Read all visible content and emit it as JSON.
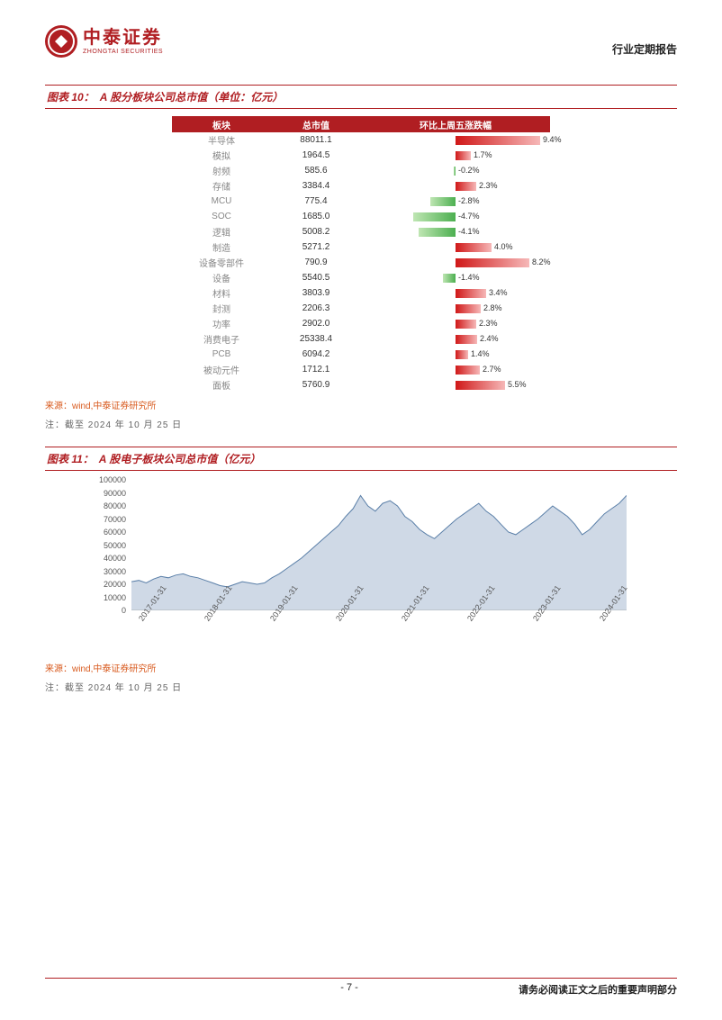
{
  "header": {
    "logo_cn": "中泰证券",
    "logo_en": "ZHONGTAI SECURITIES",
    "right_text": "行业定期报告"
  },
  "fig10": {
    "prefix": "图表 10：",
    "title": "A 股分板块公司总市值（单位：亿元）",
    "columns": [
      "板块",
      "总市值",
      "环比上周五涨跌幅"
    ],
    "bar_scale_pct": 10,
    "pos_color_start": "#d01818",
    "pos_color_end": "#f6b8b8",
    "neg_color_start": "#4caf50",
    "neg_color_end": "#bfe6b3",
    "rows": [
      {
        "name": "半导体",
        "mcap": "88011.1",
        "pct": 9.4
      },
      {
        "name": "模拟",
        "mcap": "1964.5",
        "pct": 1.7
      },
      {
        "name": "射频",
        "mcap": "585.6",
        "pct": -0.2
      },
      {
        "name": "存储",
        "mcap": "3384.4",
        "pct": 2.3
      },
      {
        "name": "MCU",
        "mcap": "775.4",
        "pct": -2.8
      },
      {
        "name": "SOC",
        "mcap": "1685.0",
        "pct": -4.7
      },
      {
        "name": "逻辑",
        "mcap": "5008.2",
        "pct": -4.1
      },
      {
        "name": "制造",
        "mcap": "5271.2",
        "pct": 4.0
      },
      {
        "name": "设备零部件",
        "mcap": "790.9",
        "pct": 8.2
      },
      {
        "name": "设备",
        "mcap": "5540.5",
        "pct": -1.4
      },
      {
        "name": "材料",
        "mcap": "3803.9",
        "pct": 3.4
      },
      {
        "name": "封测",
        "mcap": "2206.3",
        "pct": 2.8
      },
      {
        "name": "功率",
        "mcap": "2902.0",
        "pct": 2.3
      },
      {
        "name": "消费电子",
        "mcap": "25338.4",
        "pct": 2.4
      },
      {
        "name": "PCB",
        "mcap": "6094.2",
        "pct": 1.4
      },
      {
        "name": "被动元件",
        "mcap": "1712.1",
        "pct": 2.7
      },
      {
        "name": "面板",
        "mcap": "5760.9",
        "pct": 5.5
      }
    ],
    "source": "来源：wind,中泰证券研究所",
    "note": "注：截至 2024 年 10 月 25 日"
  },
  "fig11": {
    "prefix": "图表 11：",
    "title": "A 股电子板块公司总市值（亿元）",
    "type": "area",
    "ylim": [
      0,
      100000
    ],
    "ytick_step": 10000,
    "yticks": [
      "0",
      "10000",
      "20000",
      "30000",
      "40000",
      "50000",
      "60000",
      "70000",
      "80000",
      "90000",
      "100000"
    ],
    "xlabels": [
      "2017-01-31",
      "2018-01-31",
      "2019-01-31",
      "2020-01-31",
      "2021-01-31",
      "2022-01-31",
      "2023-01-31",
      "2024-01-31"
    ],
    "line_color": "#5a7fa8",
    "fill_color": "#cfd9e6",
    "background_color": "#ffffff",
    "series": [
      22000,
      23000,
      21000,
      24000,
      26000,
      25000,
      27000,
      28000,
      26000,
      25000,
      23000,
      21000,
      19000,
      18000,
      20000,
      22000,
      21000,
      20000,
      21000,
      25000,
      28000,
      32000,
      36000,
      40000,
      45000,
      50000,
      55000,
      60000,
      65000,
      72000,
      78000,
      88000,
      80000,
      76000,
      82000,
      84000,
      80000,
      72000,
      68000,
      62000,
      58000,
      55000,
      60000,
      65000,
      70000,
      74000,
      78000,
      82000,
      76000,
      72000,
      66000,
      60000,
      58000,
      62000,
      66000,
      70000,
      75000,
      80000,
      76000,
      72000,
      66000,
      58000,
      62000,
      68000,
      74000,
      78000,
      82000,
      88000
    ],
    "source": "来源：wind,中泰证券研究所",
    "note": "注：截至 2024 年 10 月 25 日"
  },
  "footer": {
    "page": "- 7 -",
    "disclaimer": "请务必阅读正文之后的重要声明部分"
  }
}
